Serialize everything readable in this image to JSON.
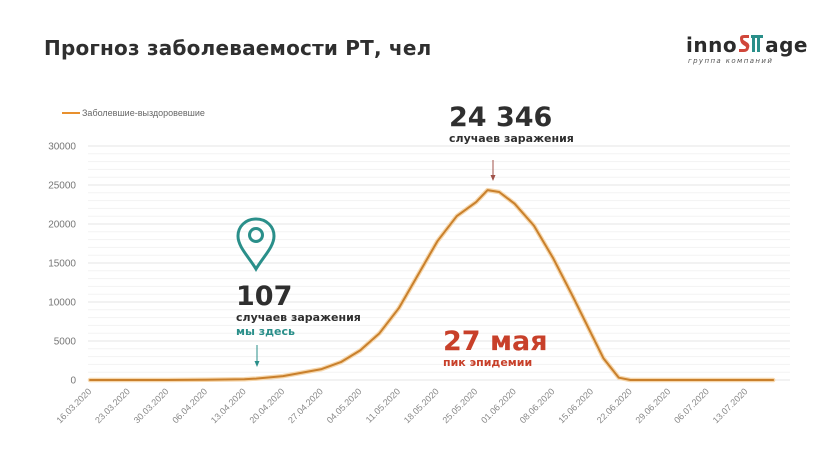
{
  "header": {
    "title": "Прогноз заболеваемости РТ, чел"
  },
  "logo": {
    "part1": "inno",
    "part2": "age",
    "subtitle": "группа компаний",
    "colors": {
      "red": "#d0463a",
      "teal": "#2a8f8a",
      "dark": "#2b2b2b"
    }
  },
  "legend": {
    "label": "Заболевшие-выздоровевшие",
    "color": "#e8902e"
  },
  "annotations": {
    "peak": {
      "value": "24 346",
      "label": "случаев заражения"
    },
    "current": {
      "value": "107",
      "label": "случаев заражения",
      "note": "мы здесь",
      "icon": "location-pin-icon"
    },
    "peak_date": {
      "value": "27 мая",
      "label": "пик эпидемии"
    }
  },
  "colors": {
    "line": "#e8902e",
    "teal": "#2a8f8a",
    "red": "#c8402a",
    "arrow_peak": "#a0524a",
    "grid": "#eeeeee"
  },
  "chart_data": {
    "type": "line",
    "title": "Прогноз заболеваемости РТ, чел",
    "xlabel": "",
    "ylabel": "",
    "ylim": [
      0,
      30000
    ],
    "yticks": [
      0,
      5000,
      10000,
      15000,
      20000,
      25000,
      30000
    ],
    "grid": true,
    "legend_position": "top-left",
    "categories": [
      "16.03.2020",
      "23.03.2020",
      "30.03.2020",
      "06.04.2020",
      "13.04.2020",
      "20.04.2020",
      "27.04.2020",
      "04.05.2020",
      "11.05.2020",
      "18.05.2020",
      "25.05.2020",
      "01.06.2020",
      "08.06.2020",
      "15.06.2020",
      "22.06.2020",
      "29.06.2020",
      "06.07.2020",
      "13.07.2020"
    ],
    "series": [
      {
        "name": "Заболевшие-выздоровевшие",
        "x_index": [
          0,
          1,
          2,
          3,
          4,
          4.3,
          5,
          6,
          6.5,
          7,
          7.5,
          8,
          8.5,
          9,
          9.5,
          10,
          10.3,
          10.6,
          11,
          11.5,
          12,
          12.5,
          13,
          13.3,
          13.7,
          14,
          15,
          16,
          17,
          17.7
        ],
        "values": [
          0,
          0,
          0,
          20,
          107,
          180,
          500,
          1400,
          2300,
          3800,
          6000,
          9200,
          13500,
          17800,
          21000,
          22800,
          24346,
          24100,
          22600,
          19800,
          15600,
          10800,
          5800,
          2800,
          300,
          0,
          0,
          0,
          0,
          0
        ]
      }
    ],
    "annotations": [
      {
        "text": "24 346 случаев заражения",
        "x": "27.05.2020",
        "y": 24346
      },
      {
        "text": "107 случаев заражения, мы здесь",
        "x": "13.04.2020",
        "y": 107
      },
      {
        "text": "27 мая — пик эпидемии"
      }
    ]
  }
}
